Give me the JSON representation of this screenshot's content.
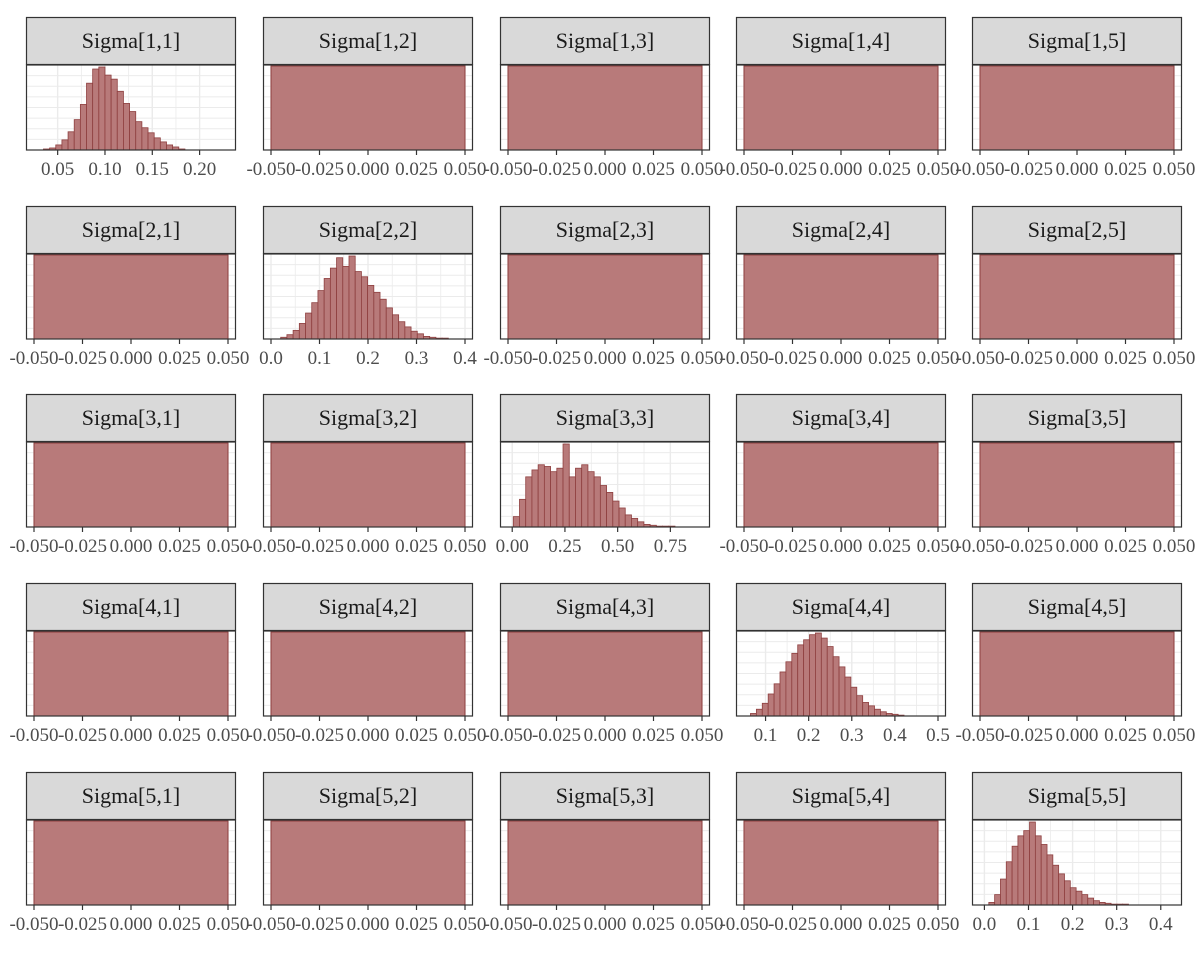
{
  "colors": {
    "bar_fill": "#b87a7a",
    "bar_stroke": "#8e3f3f",
    "strip_fill": "#d9d9d9",
    "strip_border": "#333333",
    "grid": "#ebebeb",
    "panel_border": "#333333",
    "tick_text": "#4d4d4d"
  },
  "chart_data": {
    "type": "bar",
    "description_type": "histogram facet grid",
    "grid_on": true,
    "nrow": 5,
    "ncol": 5,
    "degenerate_ticks": [
      "-0.050",
      "-0.025",
      "0.000",
      "0.025",
      "0.050"
    ],
    "degenerate_tick_values": [
      -0.05,
      -0.025,
      0.0,
      0.025,
      0.05
    ],
    "degenerate_xlim": [
      -0.05,
      0.05
    ],
    "panels": [
      {
        "label": "Sigma[1,1]",
        "kind": "histogram",
        "xlim": [
          0.025,
          0.23
        ],
        "ticks": [
          "0.05",
          "0.10",
          "0.15",
          "0.20"
        ],
        "tick_values": [
          0.05,
          0.1,
          0.15,
          0.2
        ],
        "bins_start": 0.035,
        "bin_width": 0.0065,
        "counts": [
          1,
          2,
          5,
          10,
          18,
          30,
          45,
          66,
          80,
          82,
          74,
          70,
          58,
          46,
          38,
          28,
          22,
          17,
          12,
          8,
          5,
          3,
          1
        ]
      },
      {
        "label": "Sigma[1,2]",
        "kind": "degenerate"
      },
      {
        "label": "Sigma[1,3]",
        "kind": "degenerate"
      },
      {
        "label": "Sigma[1,4]",
        "kind": "degenerate"
      },
      {
        "label": "Sigma[1,5]",
        "kind": "degenerate"
      },
      {
        "label": "Sigma[2,1]",
        "kind": "degenerate"
      },
      {
        "label": "Sigma[2,2]",
        "kind": "histogram",
        "xlim": [
          0.0,
          0.4
        ],
        "ticks": [
          "0.0",
          "0.1",
          "0.2",
          "0.3",
          "0.4"
        ],
        "tick_values": [
          0.0,
          0.1,
          0.2,
          0.3,
          0.4
        ],
        "bins_start": 0.02,
        "bin_width": 0.0128,
        "counts": [
          2,
          5,
          10,
          18,
          30,
          42,
          56,
          70,
          82,
          94,
          84,
          96,
          78,
          72,
          62,
          54,
          46,
          36,
          28,
          20,
          14,
          9,
          6,
          3,
          2,
          1,
          1
        ]
      },
      {
        "label": "Sigma[2,3]",
        "kind": "degenerate"
      },
      {
        "label": "Sigma[2,4]",
        "kind": "degenerate"
      },
      {
        "label": "Sigma[2,5]",
        "kind": "degenerate"
      },
      {
        "label": "Sigma[3,1]",
        "kind": "degenerate"
      },
      {
        "label": "Sigma[3,2]",
        "kind": "degenerate"
      },
      {
        "label": "Sigma[3,3]",
        "kind": "histogram",
        "xlim": [
          -0.02,
          0.9
        ],
        "ticks": [
          "0.00",
          "0.25",
          "0.50",
          "0.75"
        ],
        "tick_values": [
          0.0,
          0.25,
          0.5,
          0.75
        ],
        "bins_start": 0.005,
        "bin_width": 0.0295,
        "counts": [
          12,
          32,
          58,
          66,
          72,
          70,
          64,
          68,
          96,
          58,
          68,
          72,
          64,
          58,
          48,
          40,
          30,
          22,
          14,
          10,
          6,
          3,
          2,
          1,
          1,
          1,
          0
        ]
      },
      {
        "label": "Sigma[3,4]",
        "kind": "degenerate"
      },
      {
        "label": "Sigma[3,5]",
        "kind": "degenerate"
      },
      {
        "label": "Sigma[4,1]",
        "kind": "degenerate"
      },
      {
        "label": "Sigma[4,2]",
        "kind": "degenerate"
      },
      {
        "label": "Sigma[4,3]",
        "kind": "degenerate"
      },
      {
        "label": "Sigma[4,4]",
        "kind": "histogram",
        "xlim": [
          0.05,
          0.5
        ],
        "ticks": [
          "0.1",
          "0.2",
          "0.3",
          "0.4",
          "0.5"
        ],
        "tick_values": [
          0.1,
          0.2,
          0.3,
          0.4,
          0.5
        ],
        "bins_start": 0.065,
        "bin_width": 0.0137,
        "counts": [
          3,
          8,
          15,
          26,
          38,
          52,
          64,
          74,
          84,
          90,
          96,
          98,
          92,
          82,
          70,
          58,
          46,
          34,
          24,
          16,
          12,
          8,
          5,
          3,
          2,
          1
        ]
      },
      {
        "label": "Sigma[4,5]",
        "kind": "degenerate"
      },
      {
        "label": "Sigma[5,1]",
        "kind": "degenerate"
      },
      {
        "label": "Sigma[5,2]",
        "kind": "degenerate"
      },
      {
        "label": "Sigma[5,3]",
        "kind": "degenerate"
      },
      {
        "label": "Sigma[5,4]",
        "kind": "degenerate"
      },
      {
        "label": "Sigma[5,5]",
        "kind": "histogram",
        "xlim": [
          -0.01,
          0.43
        ],
        "ticks": [
          "0.0",
          "0.1",
          "0.2",
          "0.3",
          "0.4"
        ],
        "tick_values": [
          0.0,
          0.1,
          0.2,
          0.3,
          0.4
        ],
        "bins_start": 0.01,
        "bin_width": 0.0132,
        "counts": [
          3,
          12,
          30,
          50,
          68,
          80,
          86,
          96,
          80,
          70,
          58,
          46,
          36,
          28,
          20,
          16,
          12,
          8,
          5,
          3,
          2,
          1,
          1,
          1
        ]
      }
    ]
  }
}
